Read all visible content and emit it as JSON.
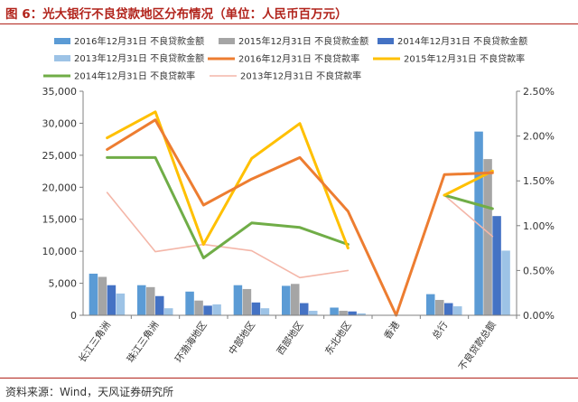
{
  "header": {
    "title": "图 6：光大银行不良贷款地区分布情况（单位：人民币百万元）"
  },
  "footer": {
    "source": "资料来源：Wind，天风证券研究所"
  },
  "colors": {
    "bar_2016": "#5b9bd5",
    "bar_2015": "#a5a5a5",
    "bar_2014": "#4472c4",
    "bar_2013": "#9dc3e6",
    "line_2016": "#ed7d31",
    "line_2015": "#ffc000",
    "line_2014": "#70ad47",
    "line_2013": "#f4b6a8",
    "title": "#b2241c"
  },
  "chart_data": {
    "type": "bar",
    "title": "图 6：光大银行不良贷款地区分布情况（单位：人民币百万元）",
    "categories": [
      "长江三角洲",
      "珠江三角洲",
      "环渤海地区",
      "中部地区",
      "西部地区",
      "东北地区",
      "香港",
      "总行",
      "不良贷款总额"
    ],
    "left_axis": {
      "ylim": [
        0,
        35000
      ],
      "ticks": [
        "0",
        "5,000",
        "10,000",
        "15,000",
        "20,000",
        "25,000",
        "30,000",
        "35,000"
      ]
    },
    "right_axis": {
      "ylim": [
        0,
        2.5
      ],
      "ticks": [
        "0.00%",
        "0.50%",
        "1.00%",
        "1.50%",
        "2.00%",
        "2.50%"
      ]
    },
    "legend_position": "top",
    "grid": false,
    "bar_series": [
      {
        "name": "2016年12月31日 不良贷款金额",
        "values": [
          6500,
          4700,
          3700,
          4700,
          4600,
          1200,
          0,
          3300,
          28700
        ]
      },
      {
        "name": "2015年12月31日 不良贷款金额",
        "values": [
          6000,
          4400,
          2300,
          4100,
          4900,
          700,
          0,
          2400,
          24400
        ]
      },
      {
        "name": "2014年12月31日 不良贷款金额",
        "values": [
          4700,
          3000,
          1500,
          2000,
          1900,
          600,
          0,
          1900,
          15500
        ]
      },
      {
        "name": "2013年12月31日 不良贷款金额",
        "values": [
          3400,
          1100,
          1700,
          1100,
          700,
          300,
          0,
          1400,
          10100
        ]
      }
    ],
    "line_series": [
      {
        "name": "2016年12月31日 不良贷款率",
        "values": [
          1.85,
          2.18,
          1.23,
          1.52,
          1.76,
          1.16,
          0.0,
          1.57,
          1.59
        ]
      },
      {
        "name": "2015年12月31日 不良贷款率",
        "values": [
          1.98,
          2.27,
          0.79,
          1.75,
          2.14,
          0.75,
          null,
          1.34,
          1.61
        ]
      },
      {
        "name": "2014年12月31日 不良贷款率",
        "values": [
          1.76,
          1.76,
          0.64,
          1.03,
          0.98,
          0.79,
          null,
          1.34,
          1.19
        ]
      },
      {
        "name": "2013年12月31日 不良贷款率",
        "values": [
          1.37,
          0.71,
          0.79,
          0.72,
          0.42,
          0.5,
          null,
          1.34,
          0.88
        ]
      }
    ]
  }
}
